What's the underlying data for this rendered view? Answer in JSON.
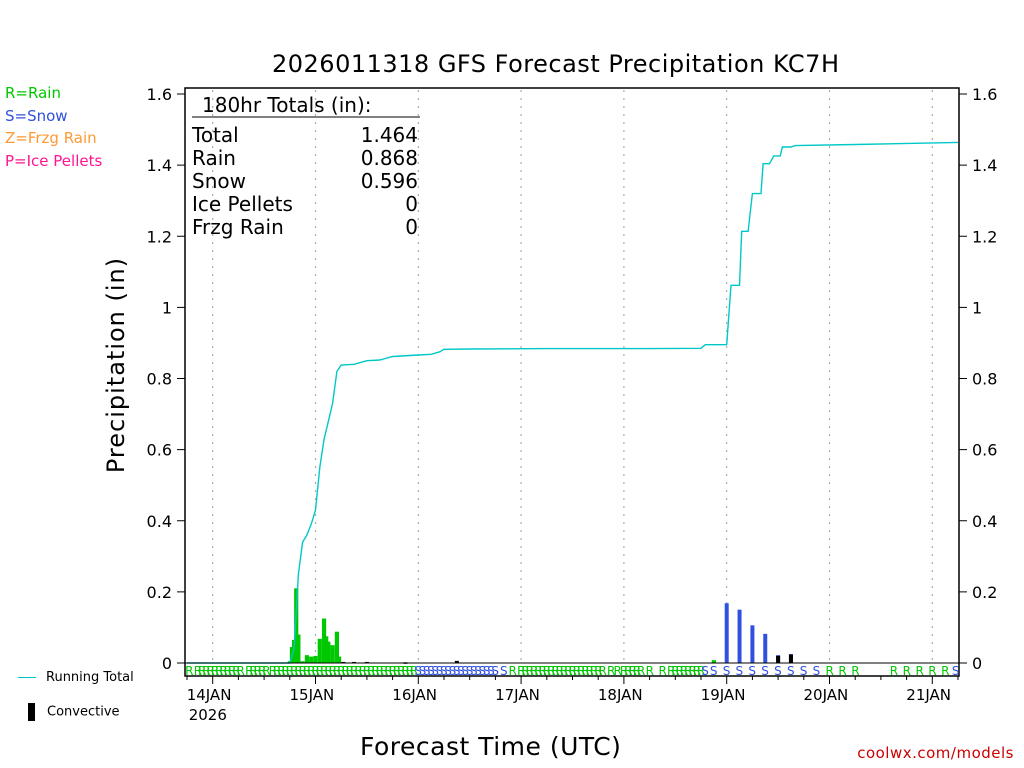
{
  "chart_data": {
    "type": "bar+line",
    "title": "2026011318 GFS Forecast Precipitation KC7H",
    "xlabel": "Forecast Time (UTC)",
    "ylabel": "Precipitation (in)",
    "ylim": [
      0,
      1.6
    ],
    "yticks": [
      "0",
      "0.2",
      "0.4",
      "0.6",
      "0.8",
      "1",
      "1.2",
      "1.4",
      "1.6"
    ],
    "xlim_hours": [
      0,
      180
    ],
    "xticks": [
      {
        "hour": 6,
        "label": "14JAN",
        "sub": "2026"
      },
      {
        "hour": 30,
        "label": "15JAN",
        "sub": ""
      },
      {
        "hour": 54,
        "label": "16JAN",
        "sub": ""
      },
      {
        "hour": 78,
        "label": "17JAN",
        "sub": ""
      },
      {
        "hour": 102,
        "label": "18JAN",
        "sub": ""
      },
      {
        "hour": 126,
        "label": "19JAN",
        "sub": ""
      },
      {
        "hour": 150,
        "label": "20JAN",
        "sub": ""
      },
      {
        "hour": 174,
        "label": "21JAN",
        "sub": ""
      }
    ],
    "totals_box": {
      "header": "180hr Totals (in):",
      "rows": [
        {
          "label": "Total",
          "value": "1.464"
        },
        {
          "label": "Rain",
          "value": "0.868"
        },
        {
          "label": "Snow",
          "value": "0.596"
        },
        {
          "label": "Ice Pellets",
          "value": "0"
        },
        {
          "label": "Frzg Rain",
          "value": "0"
        }
      ]
    },
    "type_legend": [
      {
        "text": "R=Rain",
        "color": "#00c800"
      },
      {
        "text": "S=Snow",
        "color": "#3050e0"
      },
      {
        "text": "Z=Frzg Rain",
        "color": "#ff9933"
      },
      {
        "text": "P=Ice Pellets",
        "color": "#ff1493"
      }
    ],
    "series_legend": {
      "running_total": "Running Total",
      "convective": "Convective"
    },
    "running_total": [
      [
        0,
        0
      ],
      [
        24,
        0
      ],
      [
        25,
        0.04
      ],
      [
        26,
        0.25
      ],
      [
        27,
        0.34
      ],
      [
        28,
        0.36
      ],
      [
        29,
        0.39
      ],
      [
        30,
        0.43
      ],
      [
        31,
        0.55
      ],
      [
        32,
        0.63
      ],
      [
        33,
        0.68
      ],
      [
        34,
        0.73
      ],
      [
        35,
        0.82
      ],
      [
        36,
        0.838
      ],
      [
        39,
        0.84
      ],
      [
        42,
        0.85
      ],
      [
        45,
        0.852
      ],
      [
        48,
        0.862
      ],
      [
        54,
        0.866
      ],
      [
        57,
        0.868
      ],
      [
        59,
        0.875
      ],
      [
        60,
        0.882
      ],
      [
        66,
        0.883
      ],
      [
        84,
        0.884
      ],
      [
        108,
        0.884
      ],
      [
        120,
        0.885
      ],
      [
        121,
        0.895
      ],
      [
        126,
        0.895
      ],
      [
        127,
        1.062
      ],
      [
        129,
        1.062
      ],
      [
        129.5,
        1.214
      ],
      [
        131,
        1.214
      ],
      [
        132,
        1.32
      ],
      [
        134,
        1.32
      ],
      [
        134.5,
        1.404
      ],
      [
        136,
        1.404
      ],
      [
        137,
        1.426
      ],
      [
        138.5,
        1.426
      ],
      [
        139,
        1.451
      ],
      [
        141,
        1.451
      ],
      [
        142,
        1.455
      ],
      [
        156,
        1.458
      ],
      [
        180,
        1.464
      ]
    ],
    "bars": [
      {
        "h": 24,
        "v": 0.005,
        "t": "R"
      },
      {
        "h": 24.5,
        "v": 0.045,
        "t": "R"
      },
      {
        "h": 25,
        "v": 0.065,
        "t": "R"
      },
      {
        "h": 25.5,
        "v": 0.21,
        "t": "R"
      },
      {
        "h": 26,
        "v": 0.08,
        "t": "R"
      },
      {
        "h": 27,
        "v": 0.005,
        "t": "R"
      },
      {
        "h": 28,
        "v": 0.022,
        "t": "R"
      },
      {
        "h": 29,
        "v": 0.018,
        "t": "R"
      },
      {
        "h": 30,
        "v": 0.02,
        "t": "R"
      },
      {
        "h": 31,
        "v": 0.068,
        "t": "R"
      },
      {
        "h": 32,
        "v": 0.125,
        "t": "R"
      },
      {
        "h": 32.5,
        "v": 0.075,
        "t": "R"
      },
      {
        "h": 33,
        "v": 0.06,
        "t": "R"
      },
      {
        "h": 34,
        "v": 0.05,
        "t": "R"
      },
      {
        "h": 35,
        "v": 0.088,
        "t": "R"
      },
      {
        "h": 35.5,
        "v": 0.018,
        "t": "R"
      },
      {
        "h": 123,
        "v": 0.008,
        "t": "R"
      },
      {
        "h": 126,
        "v": 0.168,
        "t": "S"
      },
      {
        "h": 129,
        "v": 0.15,
        "t": "S"
      },
      {
        "h": 132,
        "v": 0.106,
        "t": "S"
      },
      {
        "h": 135,
        "v": 0.082,
        "t": "S"
      },
      {
        "h": 138,
        "v": 0.022,
        "t": "S"
      },
      {
        "h": 141,
        "v": 0.025,
        "t": "S"
      }
    ],
    "convective": [
      {
        "h": 36.5,
        "v": 0.003
      },
      {
        "h": 39,
        "v": 0.003
      },
      {
        "h": 42,
        "v": 0.003
      },
      {
        "h": 51,
        "v": 0.002
      },
      {
        "h": 63,
        "v": 0.006
      },
      {
        "h": 138,
        "v": 0.02
      },
      {
        "h": 141,
        "v": 0.024
      }
    ],
    "type_codes": [
      {
        "h": 0.5,
        "t": "R"
      },
      {
        "h": 2.5,
        "t": "R"
      },
      {
        "h": 3.5,
        "t": "R"
      },
      {
        "h": 4.5,
        "t": "R"
      },
      {
        "h": 5.5,
        "t": "R"
      },
      {
        "h": 6.5,
        "t": "R"
      },
      {
        "h": 7.5,
        "t": "R"
      },
      {
        "h": 8.5,
        "t": "R"
      },
      {
        "h": 9.5,
        "t": "R"
      },
      {
        "h": 10.5,
        "t": "R"
      },
      {
        "h": 11.5,
        "t": "R"
      },
      {
        "h": 12.5,
        "t": "R"
      },
      {
        "h": 14.5,
        "t": "R"
      },
      {
        "h": 15.5,
        "t": "R"
      },
      {
        "h": 16.5,
        "t": "R"
      },
      {
        "h": 17.5,
        "t": "R"
      },
      {
        "h": 18.5,
        "t": "R"
      },
      {
        "h": 20,
        "t": "R"
      },
      {
        "h": 21,
        "t": "R"
      },
      {
        "h": 22,
        "t": "R"
      },
      {
        "h": 23,
        "t": "R"
      },
      {
        "h": 24,
        "t": "R"
      },
      {
        "h": 25,
        "t": "R"
      },
      {
        "h": 26,
        "t": "R"
      },
      {
        "h": 27,
        "t": "R"
      },
      {
        "h": 28,
        "t": "R"
      },
      {
        "h": 29,
        "t": "R"
      },
      {
        "h": 30,
        "t": "R"
      },
      {
        "h": 31,
        "t": "R"
      },
      {
        "h": 32,
        "t": "R"
      },
      {
        "h": 33,
        "t": "R"
      },
      {
        "h": 34,
        "t": "R"
      },
      {
        "h": 35,
        "t": "R"
      },
      {
        "h": 36,
        "t": "R"
      },
      {
        "h": 37,
        "t": "R"
      },
      {
        "h": 38,
        "t": "R"
      },
      {
        "h": 39,
        "t": "R"
      },
      {
        "h": 40,
        "t": "R"
      },
      {
        "h": 41,
        "t": "R"
      },
      {
        "h": 42,
        "t": "R"
      },
      {
        "h": 43,
        "t": "R"
      },
      {
        "h": 44,
        "t": "R"
      },
      {
        "h": 45,
        "t": "R"
      },
      {
        "h": 46,
        "t": "R"
      },
      {
        "h": 47,
        "t": "R"
      },
      {
        "h": 48,
        "t": "R"
      },
      {
        "h": 49,
        "t": "R"
      },
      {
        "h": 50,
        "t": "R"
      },
      {
        "h": 51,
        "t": "R"
      },
      {
        "h": 52,
        "t": "R"
      },
      {
        "h": 53,
        "t": "R"
      },
      {
        "h": 54,
        "t": "S"
      },
      {
        "h": 55,
        "t": "S"
      },
      {
        "h": 56,
        "t": "S"
      },
      {
        "h": 57,
        "t": "S"
      },
      {
        "h": 58,
        "t": "S"
      },
      {
        "h": 59,
        "t": "S"
      },
      {
        "h": 60,
        "t": "S"
      },
      {
        "h": 61,
        "t": "S"
      },
      {
        "h": 62,
        "t": "S"
      },
      {
        "h": 63,
        "t": "S"
      },
      {
        "h": 64,
        "t": "S"
      },
      {
        "h": 65,
        "t": "S"
      },
      {
        "h": 66,
        "t": "S"
      },
      {
        "h": 67,
        "t": "S"
      },
      {
        "h": 68,
        "t": "S"
      },
      {
        "h": 69,
        "t": "S"
      },
      {
        "h": 70,
        "t": "S"
      },
      {
        "h": 71,
        "t": "S"
      },
      {
        "h": 72,
        "t": "S"
      },
      {
        "h": 74,
        "t": "S"
      },
      {
        "h": 76,
        "t": "R"
      },
      {
        "h": 78,
        "t": "R"
      },
      {
        "h": 79,
        "t": "R"
      },
      {
        "h": 80,
        "t": "R"
      },
      {
        "h": 81,
        "t": "R"
      },
      {
        "h": 82,
        "t": "R"
      },
      {
        "h": 83,
        "t": "R"
      },
      {
        "h": 84,
        "t": "R"
      },
      {
        "h": 85,
        "t": "R"
      },
      {
        "h": 86,
        "t": "R"
      },
      {
        "h": 87,
        "t": "R"
      },
      {
        "h": 88,
        "t": "R"
      },
      {
        "h": 89,
        "t": "R"
      },
      {
        "h": 90,
        "t": "R"
      },
      {
        "h": 91,
        "t": "R"
      },
      {
        "h": 92,
        "t": "R"
      },
      {
        "h": 93,
        "t": "R"
      },
      {
        "h": 94,
        "t": "R"
      },
      {
        "h": 95,
        "t": "R"
      },
      {
        "h": 96,
        "t": "R"
      },
      {
        "h": 97,
        "t": "R"
      },
      {
        "h": 99,
        "t": "R"
      },
      {
        "h": 100.5,
        "t": "R"
      },
      {
        "h": 102,
        "t": "R"
      },
      {
        "h": 103,
        "t": "R"
      },
      {
        "h": 104,
        "t": "R"
      },
      {
        "h": 105,
        "t": "R"
      },
      {
        "h": 106,
        "t": "R"
      },
      {
        "h": 108,
        "t": "R"
      },
      {
        "h": 111,
        "t": "R"
      },
      {
        "h": 113,
        "t": "R"
      },
      {
        "h": 114,
        "t": "R"
      },
      {
        "h": 115,
        "t": "R"
      },
      {
        "h": 116,
        "t": "R"
      },
      {
        "h": 117,
        "t": "R"
      },
      {
        "h": 118,
        "t": "R"
      },
      {
        "h": 119,
        "t": "R"
      },
      {
        "h": 120,
        "t": "R"
      },
      {
        "h": 121,
        "t": "S"
      },
      {
        "h": 123,
        "t": "S"
      },
      {
        "h": 126,
        "t": "S"
      },
      {
        "h": 129,
        "t": "S"
      },
      {
        "h": 132,
        "t": "S"
      },
      {
        "h": 135,
        "t": "S"
      },
      {
        "h": 138,
        "t": "S"
      },
      {
        "h": 141,
        "t": "S"
      },
      {
        "h": 144,
        "t": "S"
      },
      {
        "h": 147,
        "t": "S"
      },
      {
        "h": 150,
        "t": "R"
      },
      {
        "h": 153,
        "t": "R"
      },
      {
        "h": 156,
        "t": "R"
      },
      {
        "h": 165,
        "t": "R"
      },
      {
        "h": 168,
        "t": "R"
      },
      {
        "h": 171,
        "t": "R"
      },
      {
        "h": 174,
        "t": "R"
      },
      {
        "h": 177,
        "t": "R"
      },
      {
        "h": 179.5,
        "t": "S"
      }
    ]
  },
  "credit": "coolwx.com/models",
  "colors": {
    "rain": "#00c800",
    "snow": "#3050e0",
    "running_total": "#00c8c8",
    "credit": "#cc0000",
    "convective": "#000000",
    "grid": "#aaaaaa"
  }
}
